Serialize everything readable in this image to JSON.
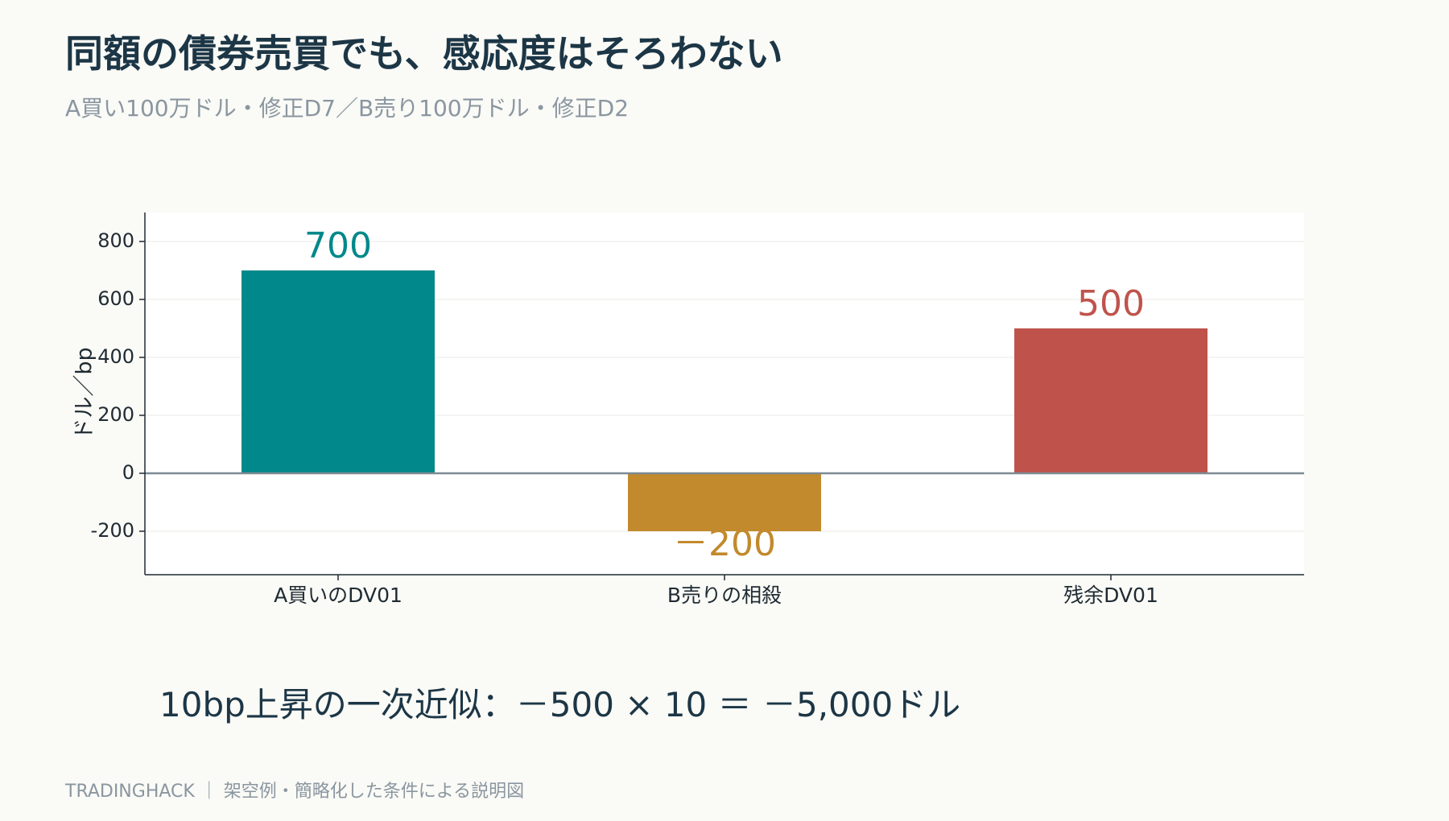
{
  "header": {
    "title": "同額の債券売買でも、感応度はそろわない",
    "subtitle": "A買い100万ドル・修正D7／B売り100万ドル・修正D2"
  },
  "formula": "10bp上昇の一次近似：－500 × 10 ＝ －5,000ドル",
  "footer": "TRADINGHACK ｜ 架空例・簡略化した条件による説明図",
  "chart_data": {
    "type": "bar",
    "categories": [
      "A買いのDV01",
      "B売りの相殺",
      "残余DV01"
    ],
    "values": [
      700,
      -200,
      500
    ],
    "value_labels": [
      "700",
      "－200",
      "500"
    ],
    "colors": [
      "#00888a",
      "#c28a2c",
      "#bf534c"
    ],
    "ylabel": "ドル／bp",
    "ylim": [
      -350,
      900
    ],
    "yticks": [
      -200,
      0,
      200,
      400,
      600,
      800
    ],
    "ytick_labels": [
      "-200",
      "0",
      "200",
      "400",
      "600",
      "800"
    ],
    "grid": true,
    "zero_line_color": "#7d8a94"
  }
}
